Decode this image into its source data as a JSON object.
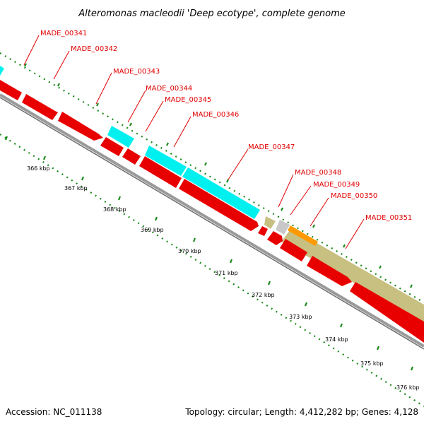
{
  "title": "Alteromonas macleodii 'Deep ecotype', complete genome",
  "footer": {
    "accession": "Accession: NC_011138",
    "topology": "Topology: circular; Length: 4,412,282 bp; Genes: 4,128"
  },
  "colors": {
    "cds": "#e80000",
    "trna": "#00f0f0",
    "other": "#c8c080",
    "misc_grey": "#c8c8c8",
    "misc_orange": "#ff9900",
    "tick": "#1a8a1a",
    "backbone": "#888888",
    "label": "#e00000"
  },
  "scale": {
    "unit": "kbp",
    "ticks": [
      {
        "kbp": 366,
        "label": "366 kbp"
      },
      {
        "kbp": 367,
        "label": "367 kbp"
      },
      {
        "kbp": 368,
        "label": "368 kbp"
      },
      {
        "kbp": 369,
        "label": "369 kbp"
      },
      {
        "kbp": 370,
        "label": "370 kbp"
      },
      {
        "kbp": 371,
        "label": "371 kbp"
      },
      {
        "kbp": 372,
        "label": "372 kbp"
      },
      {
        "kbp": 373,
        "label": "373 kbp"
      },
      {
        "kbp": 374,
        "label": "374 kbp"
      },
      {
        "kbp": 375,
        "label": "375 kbp"
      },
      {
        "kbp": 376,
        "label": "376 kbp"
      }
    ]
  },
  "gene_labels": [
    {
      "name": "MADE_00341"
    },
    {
      "name": "MADE_00342"
    },
    {
      "name": "MADE_00343"
    },
    {
      "name": "MADE_00344"
    },
    {
      "name": "MADE_00345"
    },
    {
      "name": "MADE_00346"
    },
    {
      "name": "MADE_00347"
    },
    {
      "name": "MADE_00348"
    },
    {
      "name": "MADE_00349"
    },
    {
      "name": "MADE_00350"
    },
    {
      "name": "MADE_00351"
    }
  ]
}
